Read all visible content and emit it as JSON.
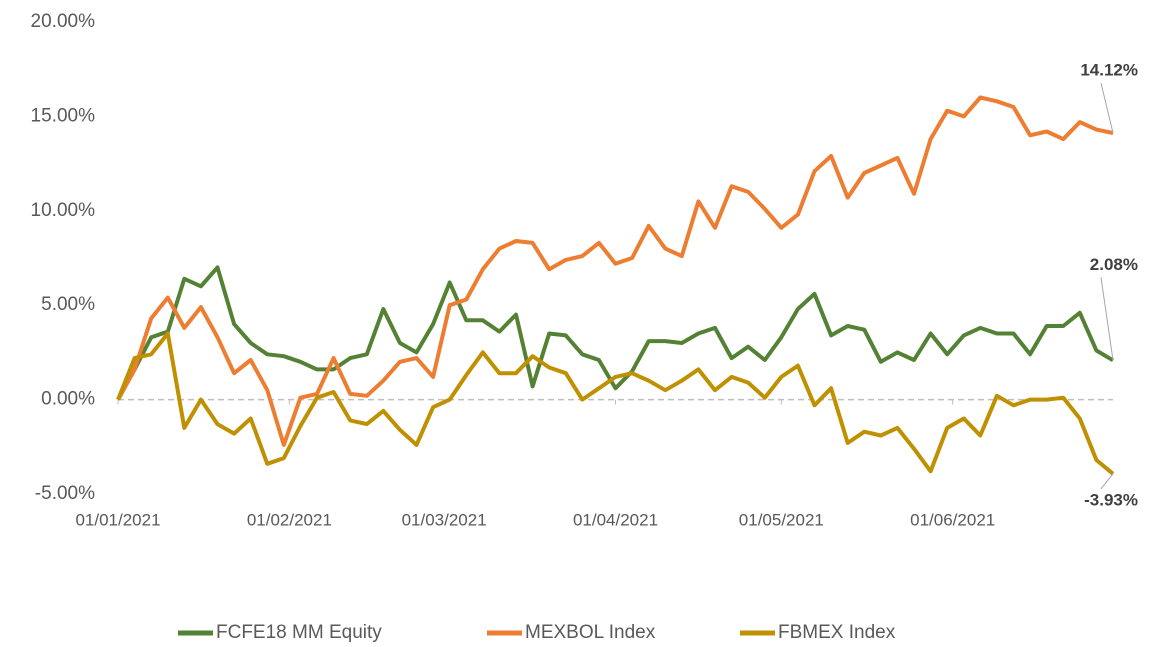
{
  "chart_data": {
    "type": "line",
    "x": [
      "2021-01-01",
      "2021-01-04",
      "2021-01-07",
      "2021-01-10",
      "2021-01-13",
      "2021-01-16",
      "2021-01-19",
      "2021-01-22",
      "2021-01-25",
      "2021-01-28",
      "2021-01-31",
      "2021-02-03",
      "2021-02-06",
      "2021-02-09",
      "2021-02-12",
      "2021-02-15",
      "2021-02-18",
      "2021-02-21",
      "2021-02-24",
      "2021-02-27",
      "2021-03-02",
      "2021-03-05",
      "2021-03-08",
      "2021-03-11",
      "2021-03-14",
      "2021-03-17",
      "2021-03-20",
      "2021-03-23",
      "2021-03-26",
      "2021-03-29",
      "2021-04-01",
      "2021-04-04",
      "2021-04-07",
      "2021-04-10",
      "2021-04-13",
      "2021-04-16",
      "2021-04-19",
      "2021-04-22",
      "2021-04-25",
      "2021-04-28",
      "2021-05-01",
      "2021-05-04",
      "2021-05-07",
      "2021-05-10",
      "2021-05-13",
      "2021-05-16",
      "2021-05-19",
      "2021-05-22",
      "2021-05-25",
      "2021-05-28",
      "2021-05-31",
      "2021-06-03",
      "2021-06-06",
      "2021-06-09",
      "2021-06-12",
      "2021-06-15",
      "2021-06-18",
      "2021-06-21",
      "2021-06-24",
      "2021-06-27",
      "2021-06-30"
    ],
    "series": [
      {
        "name": "FCFE18 MM Equity",
        "color": "#548235",
        "values": [
          0,
          1.6,
          3.3,
          3.6,
          6.4,
          6.0,
          7.0,
          4.0,
          3.0,
          2.4,
          2.3,
          2.0,
          1.6,
          1.6,
          2.2,
          2.4,
          4.8,
          3.0,
          2.5,
          4.0,
          6.2,
          4.2,
          4.2,
          3.6,
          4.5,
          0.7,
          3.5,
          3.4,
          2.4,
          2.1,
          0.6,
          1.5,
          3.1,
          3.1,
          3.0,
          3.5,
          3.8,
          2.2,
          2.8,
          2.1,
          3.3,
          4.8,
          5.6,
          3.4,
          3.9,
          3.7,
          2.0,
          2.5,
          2.1,
          3.5,
          2.4,
          3.4,
          3.8,
          3.5,
          3.5,
          2.4,
          3.9,
          3.9,
          4.6,
          2.6,
          2.08
        ],
        "value_labels": [
          null,
          null,
          null,
          null,
          null,
          null,
          null,
          null,
          null,
          null,
          null,
          null,
          null,
          null,
          null,
          null,
          null,
          null,
          null,
          null,
          null,
          null,
          null,
          null,
          null,
          null,
          null,
          null,
          null,
          null,
          null,
          null,
          null,
          null,
          null,
          null,
          null,
          null,
          null,
          null,
          null,
          null,
          null,
          null,
          null,
          null,
          null,
          null,
          null,
          null,
          null,
          null,
          null,
          null,
          null,
          null,
          null,
          null,
          null,
          null,
          "2.08%"
        ]
      },
      {
        "name": "MEXBOL Index",
        "color": "#ed7d31",
        "values": [
          0,
          1.6,
          4.3,
          5.4,
          3.8,
          4.9,
          3.3,
          1.4,
          2.1,
          0.5,
          -2.4,
          0.1,
          0.3,
          2.2,
          0.3,
          0.2,
          1.0,
          2.0,
          2.2,
          1.2,
          5.0,
          5.3,
          6.9,
          8.0,
          8.4,
          8.3,
          6.9,
          7.4,
          7.6,
          8.3,
          7.2,
          7.5,
          9.2,
          8.0,
          7.6,
          10.5,
          9.1,
          11.3,
          11.0,
          10.1,
          9.1,
          9.8,
          12.1,
          12.9,
          10.7,
          12.0,
          12.4,
          12.8,
          10.9,
          13.8,
          15.3,
          15.0,
          16.0,
          15.8,
          15.5,
          14.0,
          14.2,
          13.8,
          14.7,
          14.3,
          14.12
        ],
        "value_labels": [
          null,
          null,
          null,
          null,
          null,
          null,
          null,
          null,
          null,
          null,
          null,
          null,
          null,
          null,
          null,
          null,
          null,
          null,
          null,
          null,
          null,
          null,
          null,
          null,
          null,
          null,
          null,
          null,
          null,
          null,
          null,
          null,
          null,
          null,
          null,
          null,
          null,
          null,
          null,
          null,
          null,
          null,
          null,
          null,
          null,
          null,
          null,
          null,
          null,
          null,
          null,
          null,
          null,
          null,
          null,
          null,
          null,
          null,
          null,
          null,
          "14.12%"
        ]
      },
      {
        "name": "FBMEX Index",
        "color": "#bf9000",
        "values": [
          0,
          2.2,
          2.4,
          3.5,
          -1.5,
          0,
          -1.3,
          -1.8,
          -1.0,
          -3.4,
          -3.1,
          -1.4,
          0.1,
          0.4,
          -1.1,
          -1.3,
          -0.6,
          -1.6,
          -2.4,
          -0.4,
          0.0,
          1.3,
          2.5,
          1.4,
          1.4,
          2.3,
          1.7,
          1.4,
          0,
          0.6,
          1.2,
          1.4,
          1.0,
          0.5,
          1.0,
          1.6,
          0.5,
          1.2,
          0.9,
          0.1,
          1.2,
          1.8,
          -0.3,
          0.6,
          -2.3,
          -1.7,
          -1.9,
          -1.5,
          -2.6,
          -3.8,
          -1.5,
          -1.0,
          -1.9,
          0.2,
          -0.3,
          0,
          0.0,
          0.1,
          -1.0,
          -3.2,
          -3.93
        ],
        "value_labels": [
          null,
          null,
          null,
          null,
          null,
          null,
          null,
          null,
          null,
          null,
          null,
          null,
          null,
          null,
          null,
          null,
          null,
          null,
          null,
          null,
          null,
          null,
          null,
          null,
          null,
          null,
          null,
          null,
          null,
          null,
          null,
          null,
          null,
          null,
          null,
          null,
          null,
          null,
          null,
          null,
          null,
          null,
          null,
          null,
          null,
          null,
          null,
          null,
          null,
          null,
          null,
          null,
          null,
          null,
          null,
          null,
          null,
          null,
          null,
          null,
          "-3.93%"
        ]
      }
    ],
    "xlim": [
      "2021-01-01",
      "2021-06-30"
    ],
    "xticks": [
      {
        "value": "2021-01-01",
        "label": "01/01/2021"
      },
      {
        "value": "2021-02-01",
        "label": "01/02/2021"
      },
      {
        "value": "2021-03-01",
        "label": "01/03/2021"
      },
      {
        "value": "2021-04-01",
        "label": "01/04/2021"
      },
      {
        "value": "2021-05-01",
        "label": "01/05/2021"
      },
      {
        "value": "2021-06-01",
        "label": "01/06/2021"
      }
    ],
    "ylim": [
      -5,
      20
    ],
    "yticks": [
      {
        "value": -5,
        "label": "-5.00%"
      },
      {
        "value": 0,
        "label": "0.00%"
      },
      {
        "value": 5,
        "label": "5.00%"
      },
      {
        "value": 10,
        "label": "10.00%"
      },
      {
        "value": 15,
        "label": "15.00%"
      },
      {
        "value": 20,
        "label": "20.00%"
      }
    ],
    "grid": false,
    "legend": "bottom"
  }
}
